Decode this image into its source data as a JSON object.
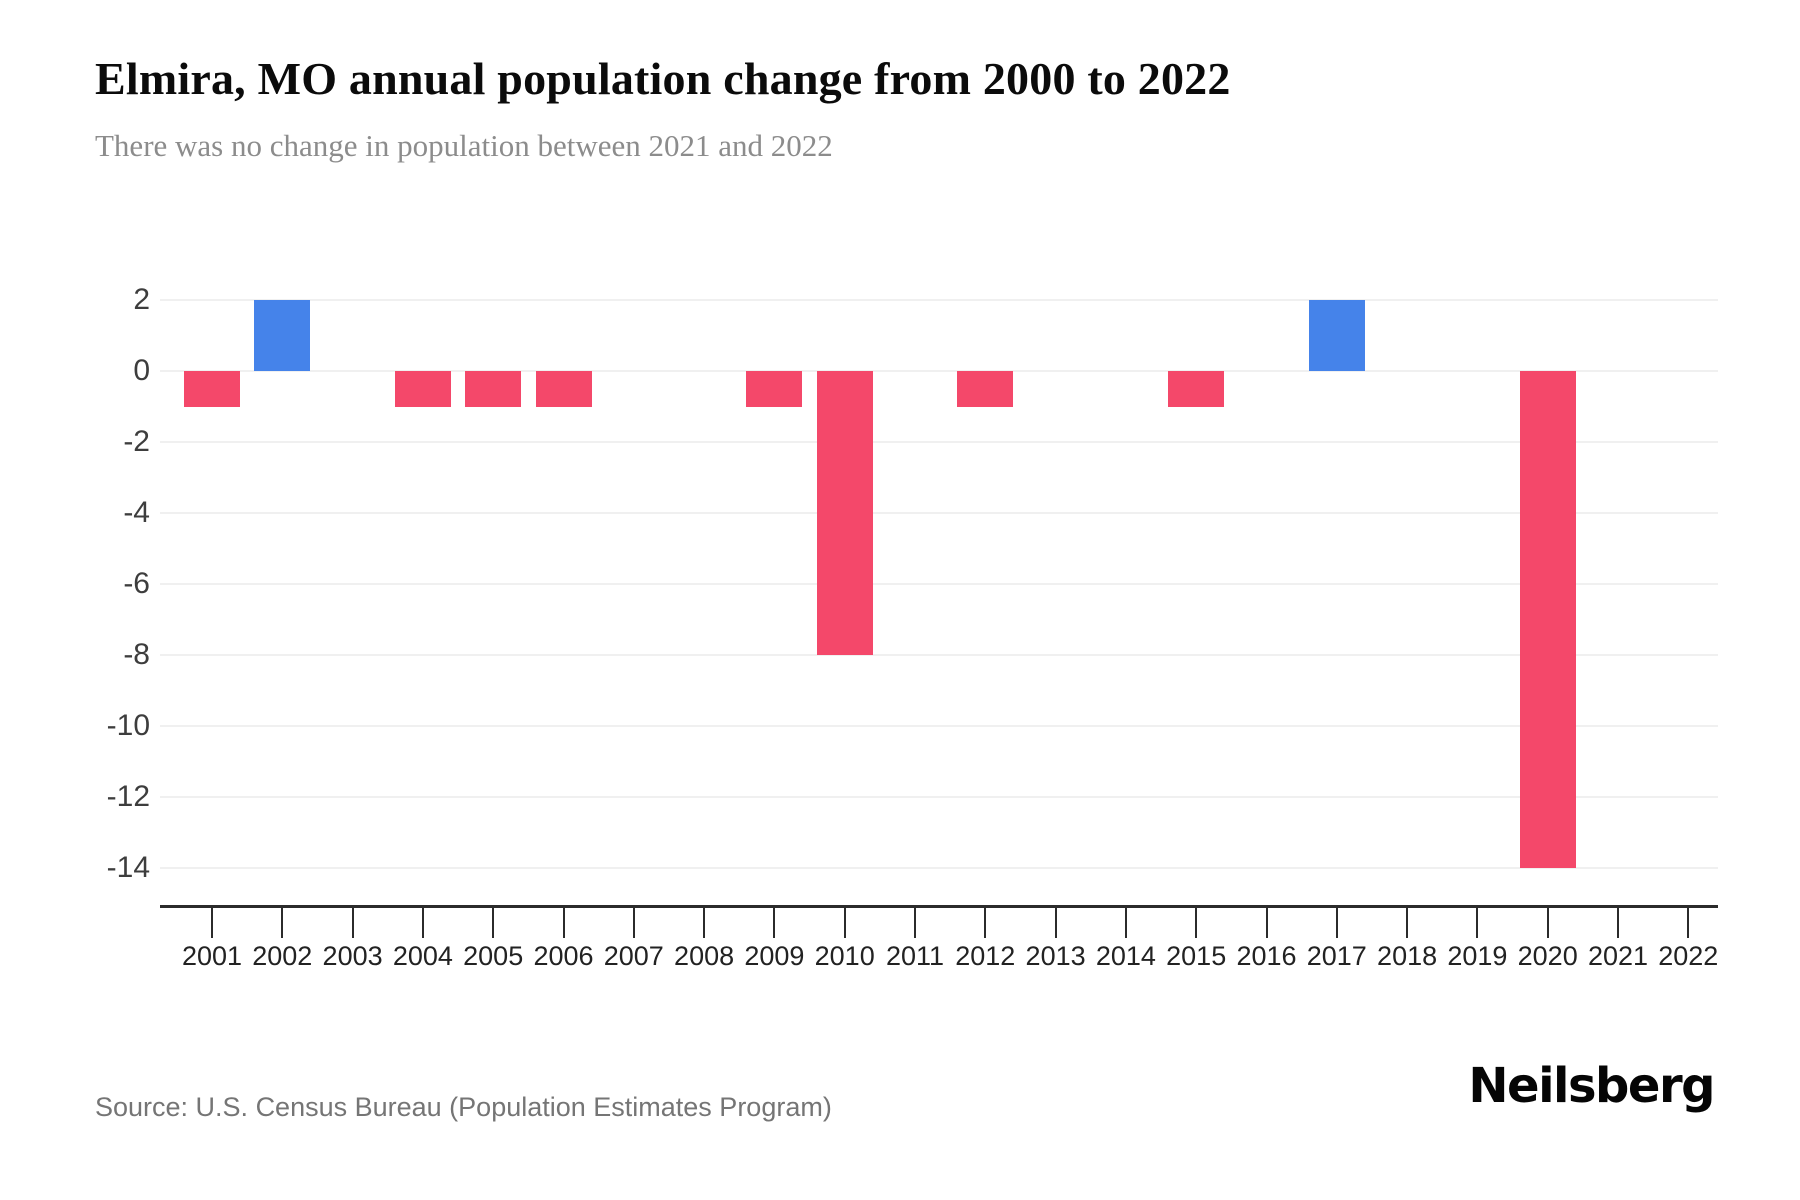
{
  "page": {
    "title": "Elmira, MO annual population change from 2000 to 2022",
    "subtitle": "There was no change in population between 2021 and 2022",
    "source": "Source: U.S. Census Bureau (Population Estimates Program)",
    "brand": "Neilsberg"
  },
  "colors": {
    "positive_bar": "#4583EA",
    "negative_bar": "#F4486A",
    "gridline": "#f0f0f0",
    "axis_line": "#2b2b2b",
    "ytick_label": "#3d3d3d",
    "xtick_label": "#222222",
    "title_text": "#0b0b0b",
    "subtitle_text": "#8c8c8c",
    "source_text": "#757575",
    "brand_text": "#050505"
  },
  "chart_data": {
    "type": "bar",
    "title": "Elmira, MO annual population change from 2000 to 2022",
    "subtitle": "There was no change in population between 2021 and 2022",
    "xlabel": "",
    "ylabel": "",
    "categories": [
      "2001",
      "2002",
      "2003",
      "2004",
      "2005",
      "2006",
      "2007",
      "2008",
      "2009",
      "2010",
      "2011",
      "2012",
      "2013",
      "2014",
      "2015",
      "2016",
      "2017",
      "2018",
      "2019",
      "2020",
      "2021",
      "2022"
    ],
    "values": [
      -1,
      2,
      0,
      -1,
      -1,
      -1,
      0,
      0,
      -1,
      -8,
      0,
      -1,
      0,
      0,
      -1,
      0,
      2,
      0,
      0,
      -14,
      0,
      0
    ],
    "yticks": [
      2,
      0,
      -2,
      -4,
      -6,
      -8,
      -10,
      -12,
      -14
    ],
    "ylim": [
      -15,
      2
    ],
    "grid": true,
    "legend": false,
    "positive_color": "#4583EA",
    "negative_color": "#F4486A"
  }
}
